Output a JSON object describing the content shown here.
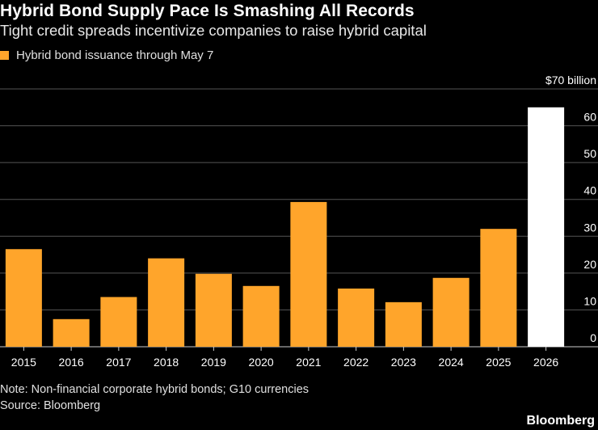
{
  "header": {
    "title": "Hybrid Bond Supply Pace Is Smashing All Records",
    "subtitle": "Tight credit spreads incentivize companies to raise hybrid capital"
  },
  "footer": {
    "note": "Note: Non-financial corporate hybrid bonds; G10 currencies",
    "source": "Source: Bloomberg",
    "brand": "Bloomberg"
  },
  "colors": {
    "series": "#ffa52b",
    "highlight": "#ffffff",
    "grid": "#555555",
    "axis": "#cccccc"
  },
  "chart_data": {
    "type": "bar",
    "title": "Hybrid Bond Supply Pace Is Smashing All Records",
    "subtitle": "Tight credit spreads incentivize companies to raise hybrid capital",
    "categories": [
      "2015",
      "2016",
      "2017",
      "2018",
      "2019",
      "2020",
      "2021",
      "2022",
      "2023",
      "2024",
      "2025",
      "2026"
    ],
    "series": [
      {
        "name": "Hybrid bond issuance through May 7",
        "values": [
          26.5,
          7.5,
          13.5,
          24,
          19.8,
          16.5,
          39.3,
          15.8,
          12.1,
          18.7,
          32,
          65
        ]
      }
    ],
    "highlight_index": 11,
    "ylim": [
      0,
      70
    ],
    "yticks": [
      0,
      10,
      20,
      30,
      40,
      50,
      60
    ],
    "ytick_labels": [
      "0",
      "10",
      "20",
      "30",
      "40",
      "50",
      "60"
    ],
    "ymax_label": "$70 billion",
    "yaxis_side": "right",
    "grid": true,
    "legend_position": "top-left"
  }
}
